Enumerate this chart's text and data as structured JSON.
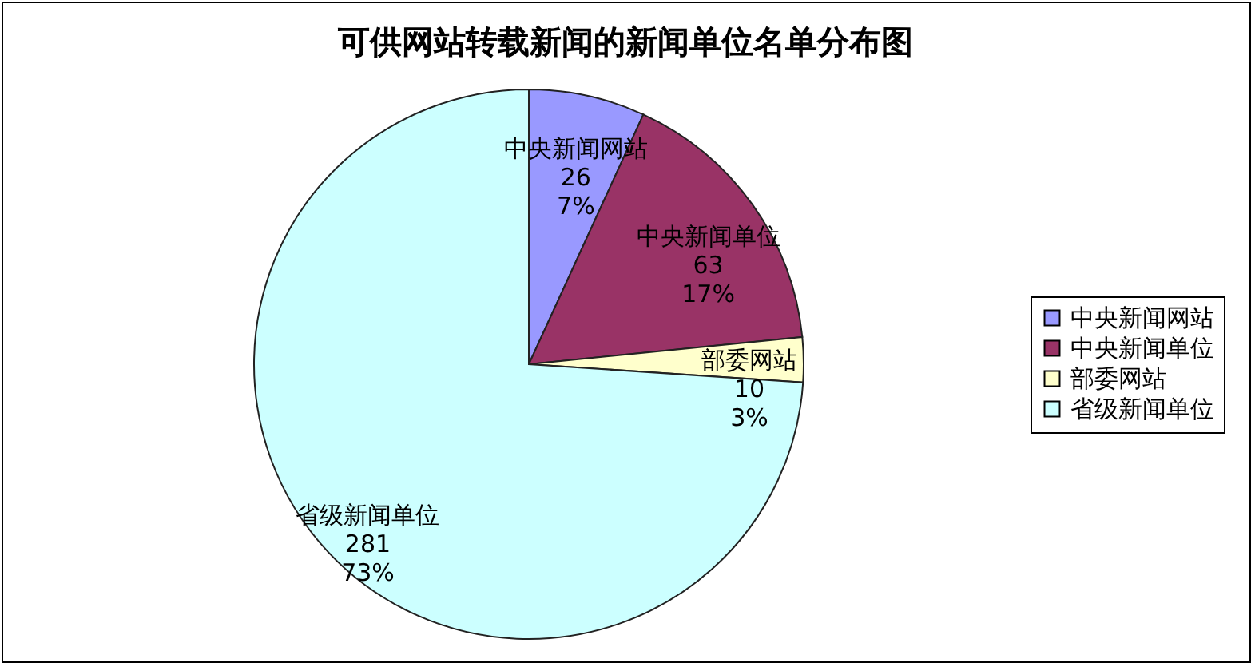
{
  "chart_data": {
    "type": "pie",
    "title": "可供网站转载新闻的新闻单位名单分布图",
    "categories": [
      "中央新闻网站",
      "中央新闻单位",
      "部委网站",
      "省级新闻单位"
    ],
    "values": [
      26,
      63,
      10,
      281
    ],
    "colors": [
      "#9999ff",
      "#993366",
      "#ffffcc",
      "#ccffff"
    ],
    "value_labels": [
      "26\n7%",
      "63\n17%",
      "10\n3%",
      "281\n73%"
    ],
    "legend": "right"
  }
}
